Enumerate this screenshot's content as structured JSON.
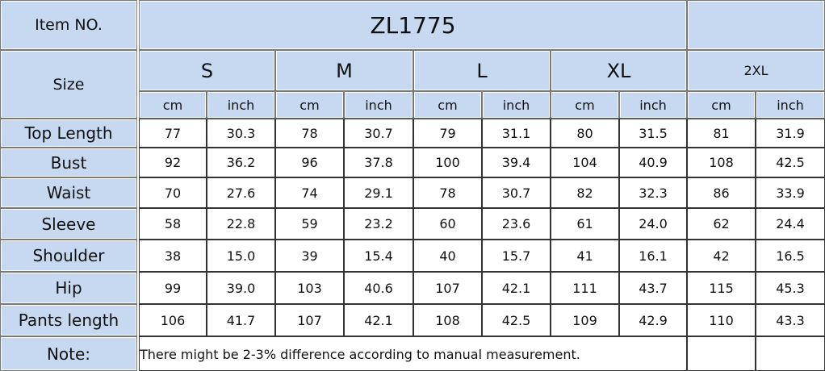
{
  "header": {
    "item_label": "Item NO.",
    "item_no": "ZL1775"
  },
  "size_label": "Size",
  "sizes": [
    "S",
    "M",
    "L",
    "XL",
    "2XL"
  ],
  "units": [
    "cm",
    "inch"
  ],
  "rows": [
    {
      "label": "Top Length",
      "values": [
        "77",
        "30.3",
        "78",
        "30.7",
        "79",
        "31.1",
        "80",
        "31.5",
        "81",
        "31.9"
      ]
    },
    {
      "label": "Bust",
      "values": [
        "92",
        "36.2",
        "96",
        "37.8",
        "100",
        "39.4",
        "104",
        "40.9",
        "108",
        "42.5"
      ]
    },
    {
      "label": "Waist",
      "values": [
        "70",
        "27.6",
        "74",
        "29.1",
        "78",
        "30.7",
        "82",
        "32.3",
        "86",
        "33.9"
      ]
    },
    {
      "label": "Sleeve",
      "values": [
        "58",
        "22.8",
        "59",
        "23.2",
        "60",
        "23.6",
        "61",
        "24.0",
        "62",
        "24.4"
      ]
    },
    {
      "label": "Shoulder",
      "values": [
        "38",
        "15.0",
        "39",
        "15.4",
        "40",
        "15.7",
        "41",
        "16.1",
        "42",
        "16.5"
      ]
    },
    {
      "label": "Hip",
      "values": [
        "99",
        "39.0",
        "103",
        "40.6",
        "107",
        "42.1",
        "111",
        "43.7",
        "115",
        "45.3"
      ]
    },
    {
      "label": "Pants length",
      "values": [
        "106",
        "41.7",
        "107",
        "42.1",
        "108",
        "42.5",
        "109",
        "42.9",
        "110",
        "43.3"
      ]
    }
  ],
  "note": {
    "label": "Note:",
    "text": "There might be 2-3% difference according to manual measurement."
  }
}
